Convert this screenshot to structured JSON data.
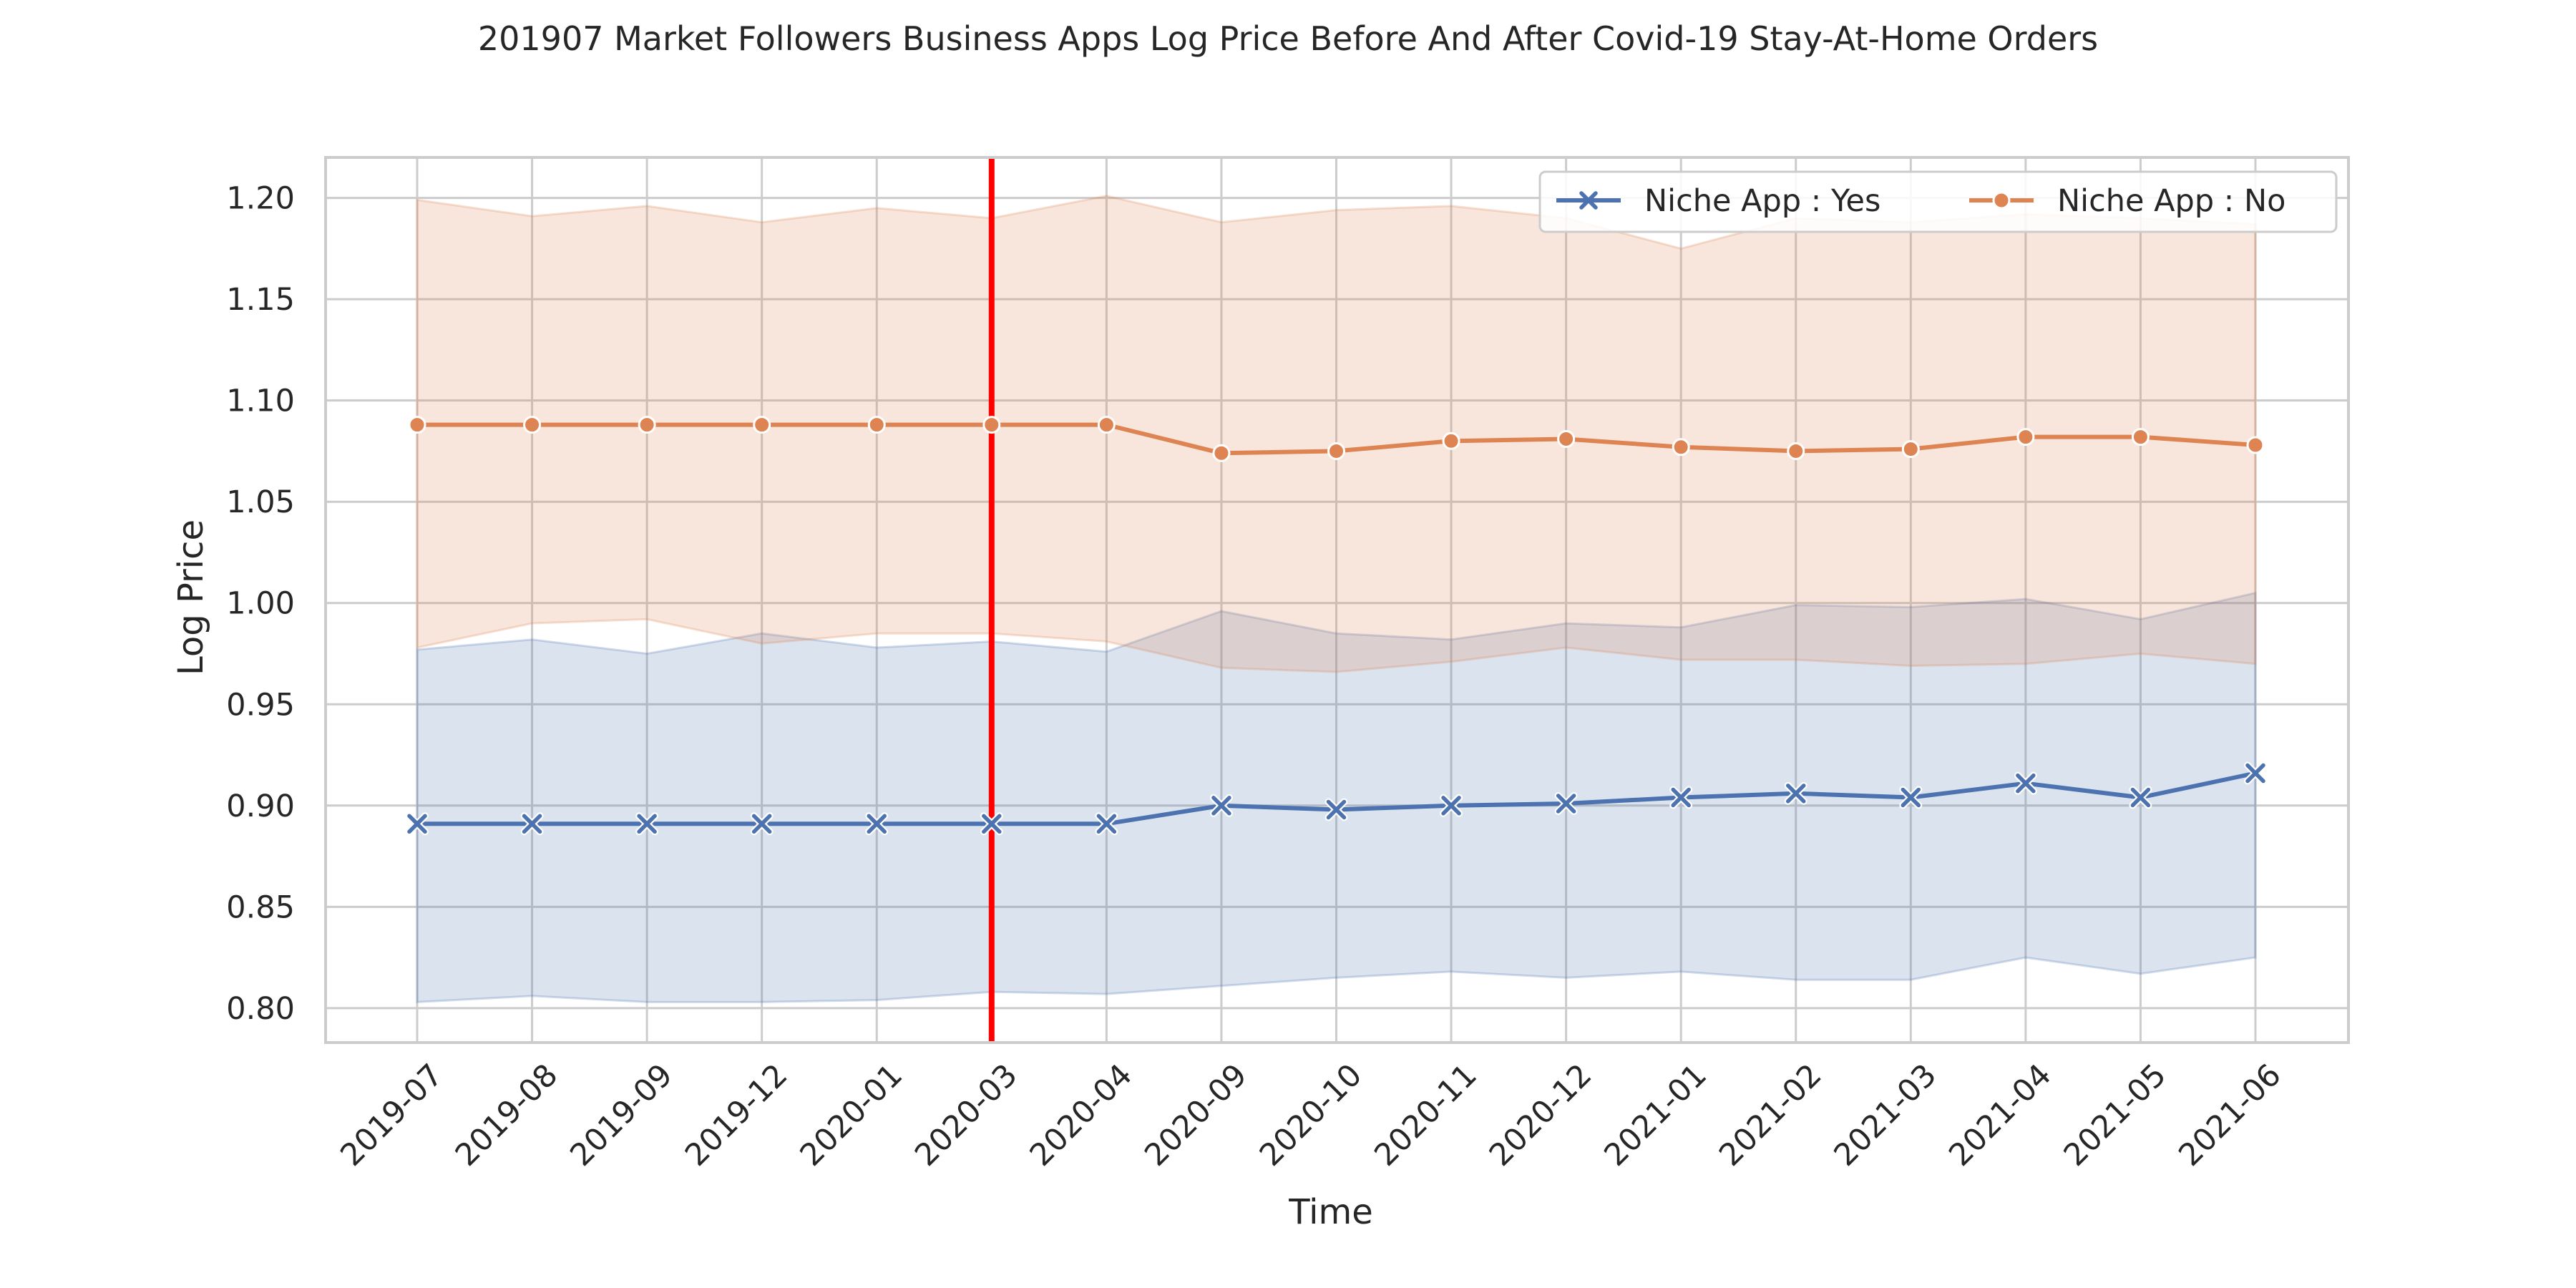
{
  "chart_data": {
    "type": "line",
    "title": "201907 Market Followers Business Apps Log Price Before And After Covid-19 Stay-At-Home Orders",
    "xlabel": "Time",
    "ylabel": "Log Price",
    "categories": [
      "2019-07",
      "2019-08",
      "2019-09",
      "2019-12",
      "2020-01",
      "2020-03",
      "2020-04",
      "2020-09",
      "2020-10",
      "2020-11",
      "2020-12",
      "2021-01",
      "2021-02",
      "2021-03",
      "2021-04",
      "2021-05",
      "2021-06"
    ],
    "ylim": [
      0.783,
      1.22
    ],
    "yticks": [
      "0.80",
      "0.85",
      "0.90",
      "0.95",
      "1.00",
      "1.05",
      "1.10",
      "1.15",
      "1.20"
    ],
    "grid": true,
    "legend": "top-right",
    "vline": {
      "category": "2020-03",
      "color": "#ff0000"
    },
    "series": [
      {
        "name": "Niche App : Yes",
        "color": "#4c72b0",
        "marker": "x",
        "values": [
          0.891,
          0.891,
          0.891,
          0.891,
          0.891,
          0.891,
          0.891,
          0.9,
          0.898,
          0.9,
          0.901,
          0.904,
          0.906,
          0.904,
          0.911,
          0.904,
          0.916
        ],
        "ci_low": [
          0.803,
          0.806,
          0.803,
          0.803,
          0.804,
          0.808,
          0.807,
          0.811,
          0.815,
          0.818,
          0.815,
          0.818,
          0.814,
          0.814,
          0.825,
          0.817,
          0.825
        ],
        "ci_high": [
          0.977,
          0.982,
          0.975,
          0.985,
          0.978,
          0.981,
          0.976,
          0.996,
          0.985,
          0.982,
          0.99,
          0.988,
          0.999,
          0.998,
          1.002,
          0.992,
          1.005
        ]
      },
      {
        "name": "Niche App : No",
        "color": "#dd8452",
        "marker": "o",
        "values": [
          1.088,
          1.088,
          1.088,
          1.088,
          1.088,
          1.088,
          1.088,
          1.074,
          1.075,
          1.08,
          1.081,
          1.077,
          1.075,
          1.076,
          1.082,
          1.082,
          1.078
        ],
        "ci_low": [
          0.978,
          0.99,
          0.992,
          0.98,
          0.985,
          0.985,
          0.981,
          0.968,
          0.966,
          0.971,
          0.978,
          0.972,
          0.972,
          0.969,
          0.97,
          0.975,
          0.97
        ],
        "ci_high": [
          1.199,
          1.191,
          1.196,
          1.188,
          1.195,
          1.19,
          1.201,
          1.188,
          1.194,
          1.196,
          1.19,
          1.175,
          1.19,
          1.188,
          1.192,
          1.19,
          1.187
        ]
      }
    ]
  }
}
